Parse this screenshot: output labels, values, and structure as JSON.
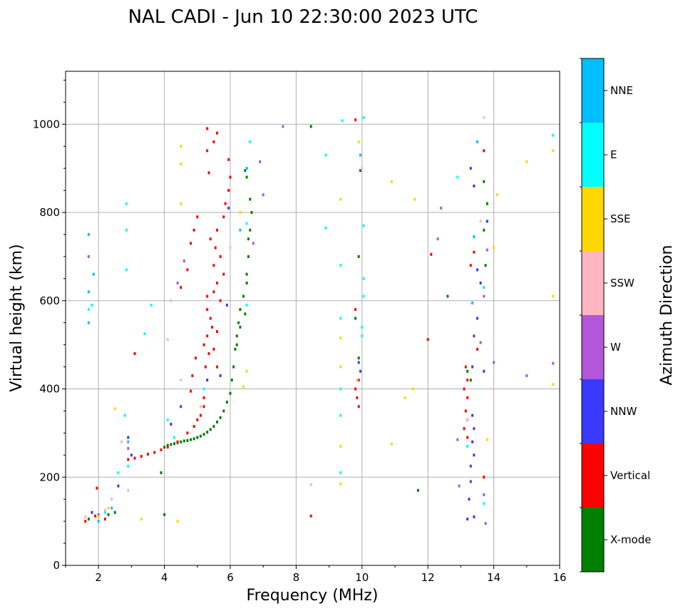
{
  "chart_data": {
    "type": "scatter",
    "title": "NAL CADI - Jun 10 22:30:00 2023 UTC",
    "xlabel": "Frequency (MHz)",
    "ylabel": "Virtual height (km)",
    "xlim": [
      1,
      16
    ],
    "ylim": [
      0,
      1120
    ],
    "xticks": [
      2,
      4,
      6,
      8,
      10,
      12,
      14,
      16
    ],
    "yticks": [
      0,
      200,
      400,
      600,
      800,
      1000
    ],
    "grid": true,
    "colorbar": {
      "label": "Azimuth Direction",
      "categories": [
        {
          "name": "X-mode",
          "color": "#008000"
        },
        {
          "name": "Vertical",
          "color": "#ff0000"
        },
        {
          "name": "NNW",
          "color": "#3a3aff"
        },
        {
          "name": "W",
          "color": "#b157d8"
        },
        {
          "name": "SSW",
          "color": "#ffb6c1"
        },
        {
          "name": "SSE",
          "color": "#ffd700"
        },
        {
          "name": "E",
          "color": "#00ffff"
        },
        {
          "name": "NNE",
          "color": "#00bfff"
        }
      ]
    },
    "series": [
      {
        "name": "X-mode",
        "points": [
          [
            4.0,
            268
          ],
          [
            4.1,
            272
          ],
          [
            4.2,
            274
          ],
          [
            4.3,
            276
          ],
          [
            4.4,
            278
          ],
          [
            4.5,
            280
          ],
          [
            4.6,
            282
          ],
          [
            4.7,
            283
          ],
          [
            4.8,
            285
          ],
          [
            4.9,
            287
          ],
          [
            5.0,
            290
          ],
          [
            5.1,
            293
          ],
          [
            5.2,
            297
          ],
          [
            5.3,
            302
          ],
          [
            5.4,
            308
          ],
          [
            5.5,
            315
          ],
          [
            5.6,
            325
          ],
          [
            5.7,
            335
          ],
          [
            5.8,
            350
          ],
          [
            5.9,
            370
          ],
          [
            6.0,
            390
          ],
          [
            6.05,
            420
          ],
          [
            6.1,
            450
          ],
          [
            6.15,
            490
          ],
          [
            6.2,
            520
          ],
          [
            6.25,
            550
          ],
          [
            6.3,
            580
          ],
          [
            6.4,
            610
          ],
          [
            6.5,
            640
          ],
          [
            6.55,
            700
          ],
          [
            6.6,
            760
          ],
          [
            6.65,
            800
          ],
          [
            6.6,
            830
          ],
          [
            6.5,
            880
          ],
          [
            6.45,
            895
          ],
          [
            6.5,
            660
          ],
          [
            6.45,
            570
          ],
          [
            6.3,
            540
          ],
          [
            6.2,
            500
          ],
          [
            6.55,
            740
          ],
          [
            3.9,
            210
          ],
          [
            4.0,
            115
          ],
          [
            8.45,
            995
          ],
          [
            9.9,
            470
          ],
          [
            9.8,
            560
          ],
          [
            9.9,
            700
          ],
          [
            9.95,
            895
          ],
          [
            11.7,
            170
          ],
          [
            12.6,
            610
          ],
          [
            13.2,
            440
          ],
          [
            13.3,
            420
          ],
          [
            13.7,
            870
          ],
          [
            13.75,
            680
          ],
          [
            13.7,
            760
          ],
          [
            13.8,
            820
          ],
          [
            2.5,
            120
          ],
          [
            2.3,
            115
          ],
          [
            1.7,
            105
          ]
        ]
      },
      {
        "name": "Vertical",
        "points": [
          [
            1.6,
            100
          ],
          [
            2.2,
            105
          ],
          [
            1.9,
            112
          ],
          [
            1.95,
            175
          ],
          [
            2.9,
            240
          ],
          [
            3.1,
            243
          ],
          [
            3.3,
            247
          ],
          [
            3.5,
            252
          ],
          [
            3.7,
            256
          ],
          [
            3.9,
            262
          ],
          [
            4.1,
            268
          ],
          [
            4.4,
            280
          ],
          [
            4.7,
            300
          ],
          [
            4.9,
            315
          ],
          [
            5.0,
            330
          ],
          [
            5.1,
            340
          ],
          [
            5.2,
            360
          ],
          [
            4.8,
            395
          ],
          [
            4.85,
            430
          ],
          [
            4.95,
            470
          ],
          [
            5.2,
            500
          ],
          [
            5.3,
            520
          ],
          [
            5.35,
            480
          ],
          [
            5.5,
            490
          ],
          [
            5.45,
            540
          ],
          [
            5.4,
            560
          ],
          [
            5.6,
            530
          ],
          [
            5.3,
            580
          ],
          [
            5.3,
            610
          ],
          [
            5.5,
            620
          ],
          [
            5.6,
            640
          ],
          [
            5.7,
            600
          ],
          [
            5.8,
            660
          ],
          [
            5.5,
            680
          ],
          [
            5.55,
            720
          ],
          [
            5.6,
            760
          ],
          [
            5.8,
            790
          ],
          [
            5.95,
            850
          ],
          [
            6.0,
            880
          ],
          [
            5.95,
            920
          ],
          [
            5.3,
            940
          ],
          [
            5.5,
            960
          ],
          [
            5.6,
            980
          ],
          [
            5.3,
            990
          ],
          [
            4.5,
            630
          ],
          [
            4.7,
            670
          ],
          [
            4.8,
            730
          ],
          [
            4.9,
            760
          ],
          [
            5.0,
            790
          ],
          [
            5.4,
            740
          ],
          [
            5.7,
            700
          ],
          [
            5.35,
            890
          ],
          [
            5.85,
            820
          ],
          [
            5.2,
            380
          ],
          [
            5.6,
            450
          ],
          [
            5.25,
            450
          ],
          [
            3.1,
            480
          ],
          [
            8.45,
            112
          ],
          [
            9.8,
            400
          ],
          [
            9.85,
            380
          ],
          [
            9.9,
            360
          ],
          [
            9.9,
            420
          ],
          [
            9.8,
            1010
          ],
          [
            9.8,
            580
          ],
          [
            12.0,
            512
          ],
          [
            12.1,
            705
          ],
          [
            13.15,
            450
          ],
          [
            13.2,
            420
          ],
          [
            13.1,
            400
          ],
          [
            13.2,
            380
          ],
          [
            13.15,
            350
          ],
          [
            13.2,
            330
          ],
          [
            13.1,
            310
          ],
          [
            13.2,
            290
          ],
          [
            13.4,
            710
          ],
          [
            13.5,
            490
          ],
          [
            13.7,
            940
          ],
          [
            13.3,
            680
          ],
          [
            13.7,
            200
          ]
        ]
      },
      {
        "name": "NNW",
        "points": [
          [
            1.8,
            120
          ],
          [
            2.6,
            180
          ],
          [
            2.9,
            290
          ],
          [
            3.0,
            250
          ],
          [
            4.2,
            320
          ],
          [
            4.5,
            360
          ],
          [
            5.3,
            420
          ],
          [
            5.7,
            430
          ],
          [
            5.9,
            590
          ],
          [
            5.95,
            810
          ],
          [
            9.9,
            460
          ],
          [
            9.95,
            440
          ],
          [
            13.3,
            900
          ],
          [
            13.4,
            860
          ],
          [
            13.5,
            670
          ],
          [
            13.4,
            520
          ],
          [
            13.35,
            450
          ],
          [
            13.35,
            340
          ],
          [
            13.4,
            310
          ],
          [
            13.35,
            280
          ],
          [
            13.4,
            250
          ],
          [
            13.3,
            225
          ],
          [
            13.3,
            190
          ],
          [
            13.25,
            150
          ],
          [
            13.4,
            110
          ],
          [
            13.2,
            105
          ],
          [
            13.7,
            440
          ],
          [
            13.5,
            560
          ],
          [
            13.6,
            640
          ],
          [
            13.8,
            780
          ]
        ]
      },
      {
        "name": "W",
        "points": [
          [
            1.7,
            700
          ],
          [
            2.0,
            115
          ],
          [
            2.9,
            265
          ],
          [
            4.4,
            640
          ],
          [
            4.6,
            690
          ],
          [
            6.7,
            730
          ],
          [
            6.9,
            915
          ],
          [
            7.0,
            840
          ],
          [
            7.6,
            995
          ],
          [
            12.4,
            810
          ],
          [
            12.3,
            740
          ],
          [
            12.9,
            285
          ],
          [
            12.95,
            180
          ],
          [
            13.7,
            160
          ],
          [
            13.75,
            95
          ],
          [
            14.0,
            460
          ],
          [
            15.0,
            430
          ],
          [
            15.8,
            458
          ],
          [
            13.8,
            715
          ],
          [
            13.7,
            610
          ],
          [
            13.6,
            505
          ]
        ]
      },
      {
        "name": "SSW",
        "points": [
          [
            1.6,
            110
          ],
          [
            2.2,
            125
          ],
          [
            2.4,
            150
          ],
          [
            2.7,
            280
          ],
          [
            2.9,
            170
          ],
          [
            4.1,
            512
          ],
          [
            4.2,
            600
          ],
          [
            4.5,
            420
          ],
          [
            5.1,
            360
          ],
          [
            6.0,
            720
          ],
          [
            8.45,
            183
          ],
          [
            9.85,
            420
          ],
          [
            10.0,
            900
          ],
          [
            13.7,
            1015
          ],
          [
            13.6,
            780
          ],
          [
            14.0,
            400
          ],
          [
            13.2,
            330
          ]
        ]
      },
      {
        "name": "SSE",
        "points": [
          [
            2.0,
            110
          ],
          [
            2.3,
            130
          ],
          [
            2.5,
            355
          ],
          [
            3.3,
            105
          ],
          [
            4.4,
            100
          ],
          [
            4.5,
            820
          ],
          [
            4.5,
            910
          ],
          [
            4.5,
            950
          ],
          [
            6.4,
            405
          ],
          [
            6.5,
            440
          ],
          [
            9.35,
            830
          ],
          [
            9.35,
            515
          ],
          [
            9.35,
            450
          ],
          [
            9.35,
            270
          ],
          [
            9.35,
            185
          ],
          [
            10.9,
            870
          ],
          [
            10.9,
            275
          ],
          [
            11.3,
            380
          ],
          [
            11.55,
            400
          ],
          [
            11.6,
            830
          ],
          [
            13.8,
            285
          ],
          [
            14.0,
            720
          ],
          [
            14.1,
            840
          ],
          [
            15.0,
            915
          ],
          [
            15.8,
            940
          ],
          [
            15.8,
            610
          ],
          [
            15.8,
            410
          ],
          [
            6.3,
            800
          ],
          [
            9.9,
            960
          ]
        ]
      },
      {
        "name": "E",
        "points": [
          [
            1.7,
            580
          ],
          [
            1.8,
            590
          ],
          [
            2.2,
            120
          ],
          [
            2.6,
            210
          ],
          [
            2.8,
            340
          ],
          [
            2.85,
            760
          ],
          [
            2.85,
            820
          ],
          [
            2.85,
            670
          ],
          [
            2.9,
            225
          ],
          [
            3.4,
            525
          ],
          [
            3.6,
            590
          ],
          [
            4.1,
            330
          ],
          [
            4.3,
            290
          ],
          [
            5.2,
            400
          ],
          [
            6.5,
            590
          ],
          [
            6.5,
            775
          ],
          [
            6.6,
            960
          ],
          [
            8.9,
            930
          ],
          [
            8.9,
            765
          ],
          [
            9.35,
            680
          ],
          [
            9.35,
            560
          ],
          [
            9.35,
            340
          ],
          [
            9.35,
            210
          ],
          [
            9.35,
            400
          ],
          [
            10.05,
            1015
          ],
          [
            10.05,
            770
          ],
          [
            10.05,
            650
          ],
          [
            10.05,
            610
          ],
          [
            10.0,
            540
          ],
          [
            10.0,
            520
          ],
          [
            12.9,
            880
          ],
          [
            13.2,
            270
          ],
          [
            13.7,
            630
          ],
          [
            13.7,
            140
          ],
          [
            15.8,
            975
          ],
          [
            9.4,
            1008
          ]
        ]
      },
      {
        "name": "NNE",
        "points": [
          [
            1.7,
            750
          ],
          [
            1.7,
            620
          ],
          [
            1.7,
            550
          ],
          [
            1.85,
            660
          ],
          [
            2.0,
            100
          ],
          [
            2.4,
            130
          ],
          [
            2.9,
            280
          ],
          [
            6.3,
            760
          ],
          [
            6.5,
            900
          ],
          [
            13.4,
            745
          ],
          [
            13.5,
            960
          ],
          [
            13.35,
            595
          ],
          [
            9.95,
            930
          ]
        ]
      }
    ]
  }
}
